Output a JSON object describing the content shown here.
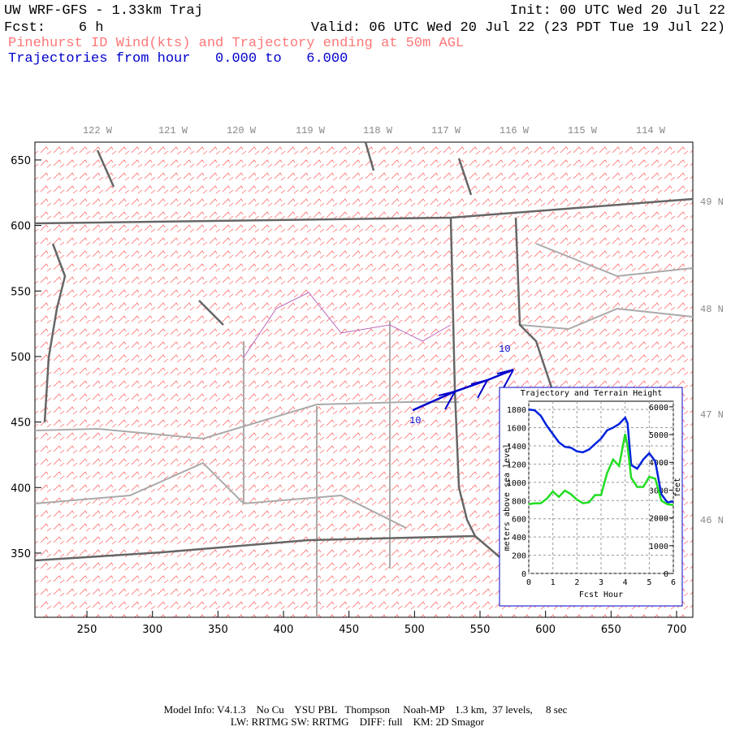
{
  "header": {
    "title": "UW WRF-GFS - 1.33km Traj",
    "init": "Init: 00 UTC Wed 20 Jul 22",
    "fcst": "Fcst:    6 h",
    "valid": "Valid: 06 UTC Wed 20 Jul 22 (23 PDT Tue 19 Jul 22)",
    "subtitle": "Pinehurst ID Wind(kts) and Trajectory ending at 50m AGL",
    "traj_range": "Trajectories from hour   0.000 to   6.000"
  },
  "map": {
    "xlim": [
      210.3,
      712.4
    ],
    "ylim": [
      301,
      663.6
    ],
    "xticks": [
      250,
      300,
      350,
      400,
      450,
      500,
      550,
      600,
      650,
      700
    ],
    "yticks": [
      350,
      400,
      450,
      500,
      550,
      600,
      650
    ],
    "lon_labels": [
      "122 W",
      "121 W",
      "120 W",
      "119 W",
      "118 W",
      "117 W",
      "116 W",
      "115 W",
      "114 W"
    ],
    "lat_labels": [
      "49 N",
      "48 N",
      "47 N",
      "46 N"
    ],
    "trajectory": {
      "color": "#0000cc",
      "x": [
        498.6,
        530.8,
        555.6,
        575.5
      ],
      "y": [
        459,
        473.3,
        482,
        490
      ],
      "labels": [
        "10",
        "10"
      ]
    }
  },
  "chart_data": {
    "type": "line",
    "title": "Trajectory and Terrain Height",
    "xlabel": "Fcst Hour",
    "ylabel": "meters above sea level",
    "y2label": "feet",
    "x": [
      0,
      0.25,
      0.5,
      0.75,
      1,
      1.25,
      1.5,
      1.75,
      2,
      2.25,
      2.5,
      2.75,
      3,
      3.25,
      3.5,
      3.75,
      4,
      4.1,
      4.25,
      4.5,
      4.75,
      5,
      5.25,
      5.5,
      5.75,
      6
    ],
    "series": [
      {
        "color": "#0022dd",
        "values": [
          1800,
          1790,
          1730,
          1620,
          1530,
          1440,
          1390,
          1380,
          1340,
          1330,
          1360,
          1420,
          1480,
          1570,
          1600,
          1640,
          1710,
          1650,
          1190,
          1150,
          1250,
          1320,
          1230,
          870,
          780,
          790
        ]
      },
      {
        "color": "#22dd22",
        "values": [
          760,
          770,
          770,
          820,
          900,
          840,
          910,
          870,
          810,
          770,
          780,
          860,
          860,
          1100,
          1250,
          1180,
          1530,
          1400,
          1050,
          950,
          950,
          1060,
          1040,
          800,
          760,
          750
        ]
      }
    ],
    "xlim": [
      0,
      6
    ],
    "xticks": [
      0,
      1,
      2,
      3,
      4,
      5,
      6
    ],
    "ylim": [
      0,
      1890
    ],
    "yticks": [
      0,
      200,
      400,
      600,
      800,
      1000,
      1200,
      1400,
      1600,
      1800
    ],
    "y2lim": [
      0,
      6201
    ],
    "y2ticks": [
      0,
      1000,
      2000,
      3000,
      4000,
      5000,
      6000
    ],
    "grid": true
  },
  "footer": {
    "line1": "Model Info: V4.1.3    No Cu    YSU PBL   Thompson     Noah-MP    1.3 km,  37 levels,     8 sec",
    "line2": "LW: RRTMG SW: RRTMG    DIFF: full    KM: 2D Smagor"
  }
}
